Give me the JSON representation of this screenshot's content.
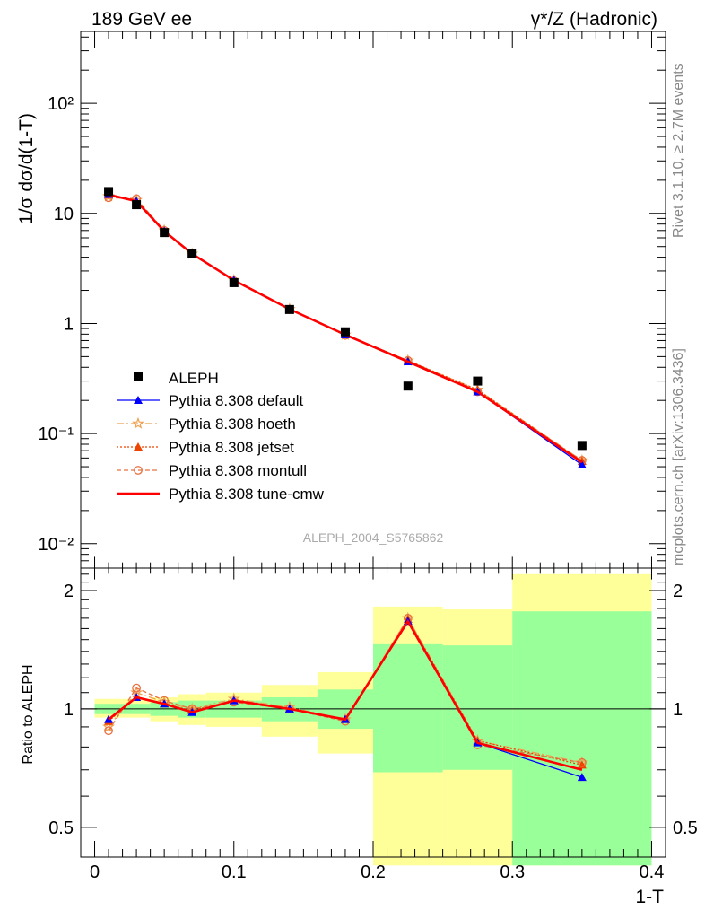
{
  "header": {
    "left": "189 GeV ee",
    "right": "γ*/Z (Hadronic)"
  },
  "side": {
    "rivet": "Rivet 3.1.10, ≥ 2.7M events",
    "mcplots": "mcplots.cern.ch [arXiv:1306.3436]"
  },
  "watermark": "ALEPH_2004_S5765862",
  "colors": {
    "data": "#000000",
    "default": "#0000ff",
    "hoeth": "#f0a050",
    "jetset": "#ee4400",
    "montull": "#e87040",
    "cmw": "#ff0000",
    "band_inner": "#99ff99",
    "band_outer": "#ffff99"
  },
  "chart_data": [
    {
      "type": "scatter",
      "yscale": "log",
      "ylabel": "1/σ  dσ/d(1-T)",
      "ylim": [
        0.006,
        450
      ],
      "xlim": [
        -0.01,
        0.41
      ],
      "y_ticks": [
        "10⁻²",
        "10⁻¹",
        "1",
        "10",
        "10²"
      ],
      "legend_position": "lower-left",
      "data_series": {
        "name": "ALEPH",
        "x": [
          0.01,
          0.03,
          0.05,
          0.07,
          0.1,
          0.14,
          0.18,
          0.225,
          0.275,
          0.35
        ],
        "y": [
          15.8,
          12.0,
          6.7,
          4.3,
          2.35,
          1.34,
          0.84,
          0.27,
          0.3,
          0.078
        ]
      },
      "series": [
        {
          "name": "Pythia 8.308 default",
          "key": "default",
          "marker": "triangle",
          "dash": "",
          "y": [
            14.9,
            12.9,
            6.9,
            4.3,
            2.47,
            1.35,
            0.79,
            0.45,
            0.24,
            0.052
          ]
        },
        {
          "name": "Pythia 8.308 hoeth",
          "key": "hoeth",
          "marker": "star",
          "dash": "8,3,2,3",
          "y": [
            14.3,
            13.2,
            7.0,
            4.3,
            2.48,
            1.35,
            0.79,
            0.46,
            0.25,
            0.057
          ]
        },
        {
          "name": "Pythia 8.308 jetset",
          "key": "jetset",
          "marker": "triangle",
          "dash": "2,2",
          "y": [
            14.7,
            12.9,
            6.9,
            4.3,
            2.46,
            1.35,
            0.79,
            0.46,
            0.25,
            0.056
          ]
        },
        {
          "name": "Pythia 8.308 montull",
          "key": "montull",
          "marker": "circle",
          "dash": "5,3",
          "y": [
            13.9,
            13.6,
            7.0,
            4.3,
            2.44,
            1.34,
            0.78,
            0.46,
            0.24,
            0.057
          ]
        },
        {
          "name": "Pythia 8.308 tune-cmw",
          "key": "cmw",
          "marker": "none",
          "dash": "",
          "y": [
            14.8,
            12.9,
            6.9,
            4.3,
            2.47,
            1.35,
            0.79,
            0.45,
            0.24,
            0.055
          ]
        }
      ]
    },
    {
      "type": "line",
      "xlabel": "1-T",
      "ylabel": "Ratio to ALEPH",
      "ylim": [
        0.42,
        2.28
      ],
      "xlim": [
        -0.01,
        0.41
      ],
      "x_ticks": [
        "0",
        "0.1",
        "0.2",
        "0.3",
        "0.4"
      ],
      "y_ticks": [
        "0.5",
        "1",
        "2"
      ],
      "bins": [
        {
          "lo": 0.0,
          "hi": 0.02,
          "inner": [
            0.97,
            1.03
          ],
          "outer": [
            0.95,
            1.06
          ]
        },
        {
          "lo": 0.02,
          "hi": 0.04,
          "inner": [
            0.97,
            1.03
          ],
          "outer": [
            0.95,
            1.06
          ]
        },
        {
          "lo": 0.04,
          "hi": 0.06,
          "inner": [
            0.96,
            1.04
          ],
          "outer": [
            0.93,
            1.07
          ]
        },
        {
          "lo": 0.06,
          "hi": 0.08,
          "inner": [
            0.95,
            1.05
          ],
          "outer": [
            0.91,
            1.09
          ]
        },
        {
          "lo": 0.08,
          "hi": 0.12,
          "inner": [
            0.95,
            1.05
          ],
          "outer": [
            0.9,
            1.1
          ]
        },
        {
          "lo": 0.12,
          "hi": 0.16,
          "inner": [
            0.93,
            1.07
          ],
          "outer": [
            0.85,
            1.15
          ]
        },
        {
          "lo": 0.16,
          "hi": 0.2,
          "inner": [
            0.89,
            1.12
          ],
          "outer": [
            0.77,
            1.24
          ]
        },
        {
          "lo": 0.2,
          "hi": 0.25,
          "inner": [
            0.69,
            1.46
          ],
          "outer": [
            0.4,
            1.82
          ]
        },
        {
          "lo": 0.25,
          "hi": 0.3,
          "inner": [
            0.7,
            1.45
          ],
          "outer": [
            0.4,
            1.79
          ]
        },
        {
          "lo": 0.3,
          "hi": 0.4,
          "inner": [
            0.4,
            1.77
          ],
          "outer": [
            0.4,
            2.2
          ]
        }
      ],
      "ratio_series": [
        {
          "key": "default",
          "y": [
            0.94,
            1.07,
            1.03,
            0.98,
            1.05,
            1.0,
            0.94,
            1.67,
            0.82,
            0.67
          ]
        },
        {
          "key": "hoeth",
          "y": [
            0.9,
            1.1,
            1.04,
            1.0,
            1.06,
            1.01,
            0.94,
            1.7,
            0.83,
            0.73
          ]
        },
        {
          "key": "jetset",
          "y": [
            0.93,
            1.07,
            1.03,
            0.99,
            1.05,
            1.0,
            0.94,
            1.69,
            0.83,
            0.72
          ]
        },
        {
          "key": "montull",
          "y": [
            0.88,
            1.13,
            1.05,
            1.0,
            1.04,
            1.0,
            0.93,
            1.7,
            0.81,
            0.73
          ]
        },
        {
          "key": "cmw",
          "y": [
            0.94,
            1.07,
            1.03,
            0.98,
            1.05,
            1.0,
            0.94,
            1.67,
            0.82,
            0.7
          ]
        }
      ]
    }
  ]
}
